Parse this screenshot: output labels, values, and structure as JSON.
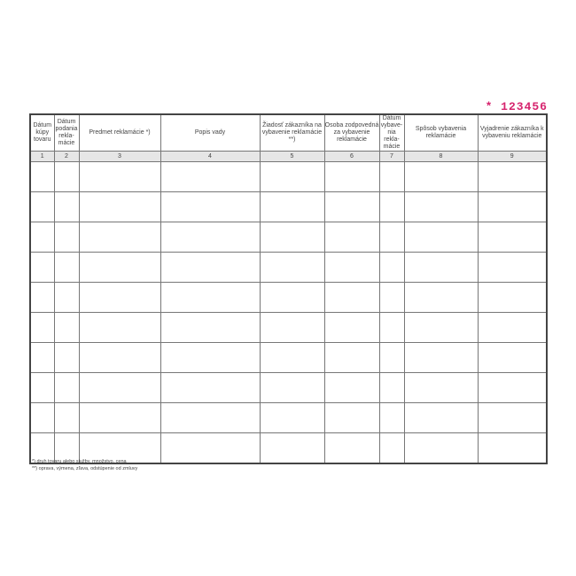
{
  "serial": "* 123456",
  "columns": [
    {
      "label": "Dátum kúpy tovaru",
      "num": "1"
    },
    {
      "label": "Dátum podania rekla-mácie",
      "num": "2"
    },
    {
      "label": "Predmet reklamácie *)",
      "num": "3"
    },
    {
      "label": "Popis vady",
      "num": "4"
    },
    {
      "label": "Žiadosť zákazníka na vybavenie reklamácie **)",
      "num": "5"
    },
    {
      "label": "Osoba zodpovedná za vybavenie reklamácie",
      "num": "6"
    },
    {
      "label": "Dátum vybave-nia rekla-mácie",
      "num": "7"
    },
    {
      "label": "Spôsob vybavenia reklamácie",
      "num": "8"
    },
    {
      "label": "Vyjadrenie zákazníka k vybaveniu reklamácie",
      "num": "9"
    }
  ],
  "row_count": 10,
  "footnotes": [
    "*)  druh tovaru alebo služby, množstvo, cena",
    "**)  oprava, výmena, zľava, odstúpenie od zmluvy"
  ]
}
